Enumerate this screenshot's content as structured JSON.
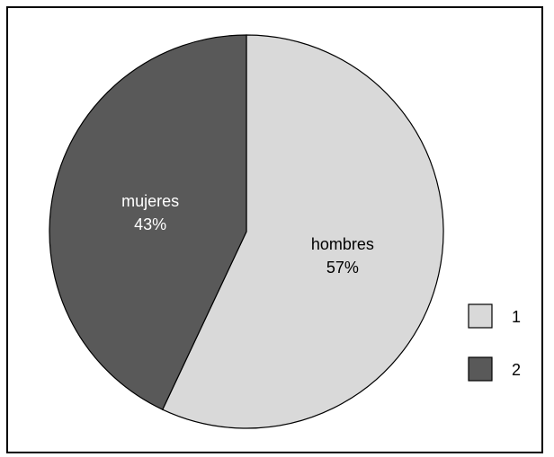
{
  "chart_data": {
    "type": "pie",
    "title": "",
    "slices": [
      {
        "label": "hombres",
        "percent_label": "57%",
        "value": 57,
        "color": "#d9d9d9",
        "text_color": "#000000"
      },
      {
        "label": "mujeres",
        "percent_label": "43%",
        "value": 43,
        "color": "#595959",
        "text_color": "#ffffff"
      }
    ],
    "legend": {
      "placement": "right",
      "entries": [
        {
          "label": "1",
          "color": "#d9d9d9"
        },
        {
          "label": "2",
          "color": "#595959"
        }
      ]
    },
    "start_angle": "12 o'clock",
    "direction": "clockwise"
  }
}
